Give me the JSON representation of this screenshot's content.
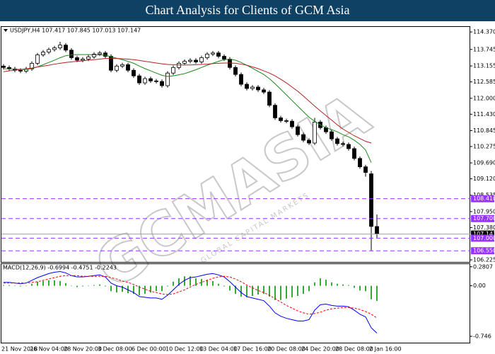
{
  "header": {
    "title": "Chart Analysis for Clients of GCM Asia"
  },
  "watermark": {
    "brand": "GCMASIA",
    "tagline": "GLOBAL CAPITAL MARKETS"
  },
  "chart_data": [
    {
      "type": "candlestick",
      "label": "USDJPY,H4  107.417 107.845 107.013 107.147",
      "categories": [
        "21 Nov 2018",
        null,
        null,
        null,
        null,
        "26 Nov 04:00",
        null,
        null,
        null,
        null,
        null,
        "28 Nov 20:00",
        null,
        null,
        null,
        null,
        null,
        "3 Dec 08:00",
        null,
        null,
        null,
        null,
        null,
        "6 Dec 00:00",
        null,
        null,
        null,
        null,
        null,
        "10 Dec 12:00",
        null,
        null,
        null,
        null,
        null,
        "13 Dec 04:00",
        null,
        null,
        null,
        null,
        null,
        "17 Dec 16:00",
        null,
        null,
        null,
        null,
        null,
        "20 Dec 08:00",
        null,
        null,
        null,
        null,
        null,
        "24 Dec 20:00",
        null,
        null,
        null,
        null,
        null,
        "28 Dec 08:00",
        null,
        null,
        null,
        null,
        null,
        "2 Jan 16:00",
        null
      ],
      "open": [
        113.15,
        113.1,
        113.05,
        113.0,
        112.97,
        113.05,
        113.25,
        113.55,
        113.65,
        113.74,
        113.8,
        113.9,
        113.72,
        113.45,
        113.36,
        113.4,
        113.48,
        113.58,
        113.62,
        113.5,
        113.0,
        113.15,
        113.2,
        113.0,
        112.8,
        112.55,
        112.7,
        112.62,
        112.6,
        112.45,
        112.9,
        113.1,
        113.25,
        113.32,
        113.36,
        113.3,
        113.45,
        113.58,
        113.62,
        113.5,
        113.4,
        113.1,
        112.85,
        112.5,
        112.35,
        112.4,
        112.3,
        112.22,
        111.75,
        111.3,
        111.2,
        111.18,
        110.98,
        110.7,
        110.5,
        110.4,
        111.15,
        110.95,
        110.8,
        110.55,
        110.38,
        110.35,
        110.2,
        109.85,
        109.55,
        109.3,
        107.417
      ],
      "high": [
        113.22,
        113.17,
        113.12,
        113.07,
        113.12,
        113.32,
        113.62,
        113.72,
        113.81,
        113.87,
        114.02,
        113.97,
        113.79,
        113.52,
        113.47,
        113.55,
        113.65,
        113.69,
        113.69,
        113.57,
        113.22,
        113.27,
        113.27,
        113.07,
        112.87,
        112.77,
        112.77,
        112.69,
        112.67,
        112.97,
        113.17,
        113.32,
        113.39,
        113.43,
        113.43,
        113.52,
        113.65,
        113.69,
        113.69,
        113.57,
        113.47,
        113.17,
        112.92,
        112.57,
        112.47,
        112.47,
        112.37,
        112.29,
        111.82,
        111.37,
        111.27,
        111.25,
        111.05,
        110.77,
        110.57,
        111.3,
        111.22,
        111.02,
        110.87,
        110.62,
        110.45,
        110.42,
        110.27,
        109.92,
        109.62,
        109.4,
        107.845
      ],
      "low": [
        113.03,
        112.98,
        112.93,
        112.9,
        112.9,
        112.98,
        113.18,
        113.48,
        113.58,
        113.67,
        113.73,
        113.65,
        113.38,
        113.29,
        113.29,
        113.33,
        113.41,
        113.51,
        113.43,
        112.93,
        112.93,
        113.08,
        112.93,
        112.73,
        112.48,
        112.48,
        112.55,
        112.53,
        112.38,
        112.38,
        112.83,
        113.03,
        113.18,
        113.25,
        113.23,
        113.23,
        113.38,
        113.51,
        113.43,
        113.33,
        113.03,
        112.78,
        112.43,
        112.28,
        112.28,
        112.23,
        112.15,
        111.68,
        111.23,
        111.13,
        111.11,
        110.91,
        110.63,
        110.43,
        110.33,
        110.33,
        110.88,
        110.73,
        110.48,
        110.31,
        110.28,
        110.13,
        109.78,
        109.48,
        109.2,
        106.55,
        107.013
      ],
      "close": [
        113.1,
        113.05,
        113.0,
        112.97,
        113.05,
        113.25,
        113.55,
        113.65,
        113.74,
        113.8,
        113.9,
        113.72,
        113.45,
        113.36,
        113.4,
        113.48,
        113.58,
        113.62,
        113.5,
        113.0,
        113.15,
        113.2,
        113.0,
        112.8,
        112.55,
        112.7,
        112.62,
        112.6,
        112.45,
        112.9,
        113.1,
        113.25,
        113.32,
        113.36,
        113.3,
        113.45,
        113.58,
        113.62,
        113.5,
        113.4,
        113.1,
        112.85,
        112.5,
        112.35,
        112.4,
        112.3,
        112.22,
        111.75,
        111.3,
        111.2,
        111.18,
        110.98,
        110.7,
        110.5,
        110.4,
        111.15,
        110.95,
        110.8,
        110.55,
        110.38,
        110.35,
        110.2,
        109.85,
        109.55,
        109.35,
        107.42,
        107.147
      ],
      "candle_color": "#000000",
      "series": [
        {
          "color": "#1a8a1a",
          "values": [
            113.05,
            113.05,
            113.04,
            113.03,
            113.03,
            113.06,
            113.12,
            113.2,
            113.28,
            113.36,
            113.45,
            113.52,
            113.55,
            113.56,
            113.56,
            113.56,
            113.55,
            113.55,
            113.54,
            113.48,
            113.43,
            113.38,
            113.32,
            113.25,
            113.15,
            113.06,
            112.98,
            112.9,
            112.82,
            112.78,
            112.8,
            112.84,
            112.88,
            112.95,
            113.02,
            113.1,
            113.18,
            113.25,
            113.32,
            113.38,
            113.4,
            113.36,
            113.28,
            113.18,
            113.07,
            112.96,
            112.85,
            112.7,
            112.52,
            112.32,
            112.12,
            111.92,
            111.72,
            111.52,
            111.32,
            111.18,
            111.05,
            110.95,
            110.88,
            110.8,
            110.7,
            110.62,
            110.5,
            110.35,
            110.15,
            109.7,
            null
          ]
        },
        {
          "color": "#b22222",
          "values": [
            112.95,
            112.98,
            113.0,
            113.03,
            113.05,
            113.08,
            113.12,
            113.15,
            113.18,
            113.22,
            113.25,
            113.28,
            113.3,
            113.32,
            113.34,
            113.36,
            113.38,
            113.4,
            113.42,
            113.42,
            113.42,
            113.41,
            113.4,
            113.38,
            113.35,
            113.32,
            113.29,
            113.26,
            113.23,
            113.21,
            113.2,
            113.19,
            113.19,
            113.19,
            113.2,
            113.21,
            113.22,
            113.24,
            113.25,
            113.26,
            113.26,
            113.25,
            113.22,
            113.18,
            113.12,
            113.06,
            112.98,
            112.9,
            112.8,
            112.68,
            112.55,
            112.4,
            112.25,
            112.08,
            111.9,
            111.72,
            111.55,
            111.38,
            111.22,
            111.05,
            110.9,
            110.78,
            110.66,
            110.56,
            110.46,
            110.4,
            null
          ]
        }
      ],
      "levels": [
        {
          "value": 108.41,
          "label": "108.410"
        },
        {
          "value": 107.7,
          "label": "107.700"
        },
        {
          "value": 107.0,
          "label": "107.000"
        },
        {
          "value": 106.55,
          "label": "106.550"
        }
      ],
      "level_color": "#9933ff",
      "current": {
        "value": 107.147,
        "label": "107.147"
      },
      "ylim": [
        106.15,
        114.55
      ],
      "yticks": [
        {
          "value": 114.37,
          "label": "114.370"
        },
        {
          "value": 113.745,
          "label": "113.745"
        },
        {
          "value": 113.155,
          "label": "113.155"
        },
        {
          "value": 112.585,
          "label": "112.585"
        },
        {
          "value": 112.0,
          "label": "112.000"
        },
        {
          "value": 111.43,
          "label": "111.430"
        },
        {
          "value": 110.845,
          "label": "110.845"
        },
        {
          "value": 110.275,
          "label": "110.275"
        },
        {
          "value": 109.69,
          "label": "109.690"
        },
        {
          "value": 109.12,
          "label": "109.120"
        },
        {
          "value": 108.535,
          "label": "108.535"
        },
        {
          "value": 107.95,
          "label": "107.950"
        },
        {
          "value": 107.38,
          "label": "107.380"
        },
        {
          "value": 106.225,
          "label": "106.225"
        }
      ]
    },
    {
      "type": "macd",
      "label": "MACD(12,26,9) -0.6994 -0.4751 -0.2243",
      "hist": [
        0.01,
        0.01,
        0,
        -0.01,
        0,
        0.03,
        0.06,
        0.07,
        0.08,
        0.08,
        0.07,
        0.04,
        0,
        -0.02,
        -0.01,
        0,
        0.01,
        0.02,
        -0.01,
        -0.08,
        -0.1,
        -0.09,
        -0.11,
        -0.12,
        -0.14,
        -0.12,
        -0.1,
        -0.08,
        -0.08,
        -0.01,
        0.06,
        0.11,
        0.14,
        0.14,
        0.11,
        0.1,
        0.09,
        0.07,
        0.03,
        -0.01,
        -0.07,
        -0.12,
        -0.16,
        -0.17,
        -0.15,
        -0.13,
        -0.12,
        -0.16,
        -0.21,
        -0.21,
        -0.19,
        -0.17,
        -0.15,
        -0.12,
        -0.08,
        0.05,
        0.11,
        0.09,
        0.05,
        0.03,
        0.02,
        0.01,
        -0.03,
        -0.07,
        -0.08,
        -0.2,
        -0.2243
      ],
      "hist_color": "#33aa33",
      "series": [
        {
          "color": "#0000ff",
          "values": [
            0.05,
            0.05,
            0.04,
            0.03,
            0.04,
            0.08,
            0.12,
            0.15,
            0.18,
            0.2,
            0.21,
            0.19,
            0.15,
            0.13,
            0.13,
            0.14,
            0.15,
            0.16,
            0.13,
            0.04,
            0.0,
            -0.02,
            -0.06,
            -0.1,
            -0.16,
            -0.17,
            -0.18,
            -0.18,
            -0.2,
            -0.14,
            -0.06,
            0.02,
            0.08,
            0.12,
            0.13,
            0.15,
            0.17,
            0.18,
            0.16,
            0.13,
            0.06,
            -0.02,
            -0.1,
            -0.16,
            -0.18,
            -0.2,
            -0.22,
            -0.3,
            -0.4,
            -0.45,
            -0.48,
            -0.5,
            -0.52,
            -0.52,
            -0.5,
            -0.36,
            -0.28,
            -0.27,
            -0.29,
            -0.3,
            -0.3,
            -0.31,
            -0.36,
            -0.42,
            -0.46,
            -0.62,
            -0.6994
          ]
        },
        {
          "color": "#ff0000",
          "dashed": true,
          "values": [
            0.04,
            0.04,
            0.04,
            0.04,
            0.04,
            0.05,
            0.06,
            0.08,
            0.1,
            0.12,
            0.14,
            0.15,
            0.15,
            0.15,
            0.14,
            0.14,
            0.14,
            0.14,
            0.14,
            0.12,
            0.1,
            0.07,
            0.05,
            0.02,
            -0.02,
            -0.05,
            -0.08,
            -0.1,
            -0.12,
            -0.13,
            -0.12,
            -0.09,
            -0.06,
            -0.02,
            0.02,
            0.05,
            0.08,
            0.11,
            0.13,
            0.14,
            0.13,
            0.1,
            0.06,
            0.01,
            -0.03,
            -0.07,
            -0.1,
            -0.14,
            -0.19,
            -0.24,
            -0.29,
            -0.33,
            -0.37,
            -0.4,
            -0.42,
            -0.41,
            -0.39,
            -0.36,
            -0.34,
            -0.33,
            -0.32,
            -0.32,
            -0.33,
            -0.35,
            -0.38,
            -0.42,
            -0.4751
          ]
        }
      ],
      "ylim": [
        -0.84,
        0.32
      ],
      "yticks": [
        0.2807,
        {
          "value": 0,
          "label": "0.00"
        },
        -0.746
      ]
    }
  ]
}
